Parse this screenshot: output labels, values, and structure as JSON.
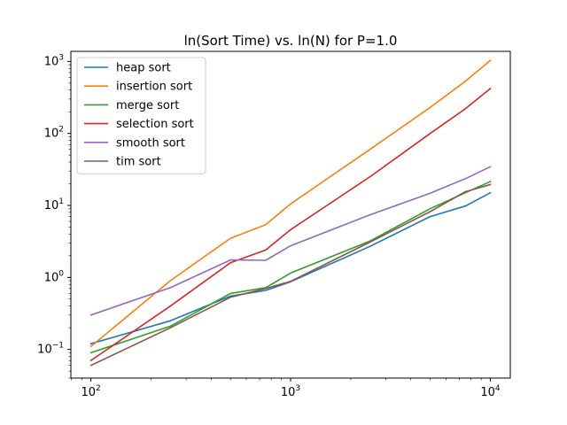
{
  "chart_data": {
    "type": "line",
    "title": "ln(Sort Time) vs. ln(N) for P=1.0",
    "xlabel": "",
    "ylabel": "",
    "xscale": "log",
    "yscale": "log",
    "xlim": [
      79.4,
      12589
    ],
    "ylim": [
      0.04,
      1380
    ],
    "x_ticks": [
      {
        "value": 100,
        "base": "10",
        "exp": "2"
      },
      {
        "value": 1000,
        "base": "10",
        "exp": "3"
      },
      {
        "value": 10000,
        "base": "10",
        "exp": "4"
      }
    ],
    "y_ticks": [
      {
        "value": 0.1,
        "base": "10",
        "exp": "−1"
      },
      {
        "value": 1,
        "base": "10",
        "exp": "0"
      },
      {
        "value": 10,
        "base": "10",
        "exp": "1"
      },
      {
        "value": 100,
        "base": "10",
        "exp": "2"
      },
      {
        "value": 1000,
        "base": "10",
        "exp": "3"
      }
    ],
    "grid": false,
    "legend_position": "top-left",
    "x": [
      100,
      250,
      500,
      750,
      1000,
      2500,
      5000,
      7500,
      10000
    ],
    "series": [
      {
        "name": "heap sort",
        "color": "#1f77b4",
        "values": [
          0.12,
          0.25,
          0.55,
          0.66,
          0.87,
          2.7,
          7.0,
          9.8,
          15.0
        ]
      },
      {
        "name": "insertion sort",
        "color": "#ff7f0e",
        "values": [
          0.11,
          0.9,
          3.5,
          5.4,
          10.5,
          60,
          230,
          530,
          1030
        ]
      },
      {
        "name": "merge sort",
        "color": "#2ca02c",
        "values": [
          0.09,
          0.21,
          0.6,
          0.72,
          1.15,
          3.2,
          9.0,
          15.0,
          21.5
        ]
      },
      {
        "name": "selection sort",
        "color": "#d62728",
        "values": [
          0.07,
          0.4,
          1.6,
          2.4,
          4.6,
          25,
          100,
          220,
          420
        ]
      },
      {
        "name": "smooth sort",
        "color": "#9467bd",
        "values": [
          0.3,
          0.72,
          1.75,
          1.73,
          2.75,
          7.4,
          14.8,
          23.5,
          34.5
        ]
      },
      {
        "name": "tim sort",
        "color": "#8c564b",
        "values": [
          0.06,
          0.2,
          0.53,
          0.7,
          0.88,
          3.1,
          8.2,
          15.5,
          19.5
        ]
      }
    ]
  }
}
